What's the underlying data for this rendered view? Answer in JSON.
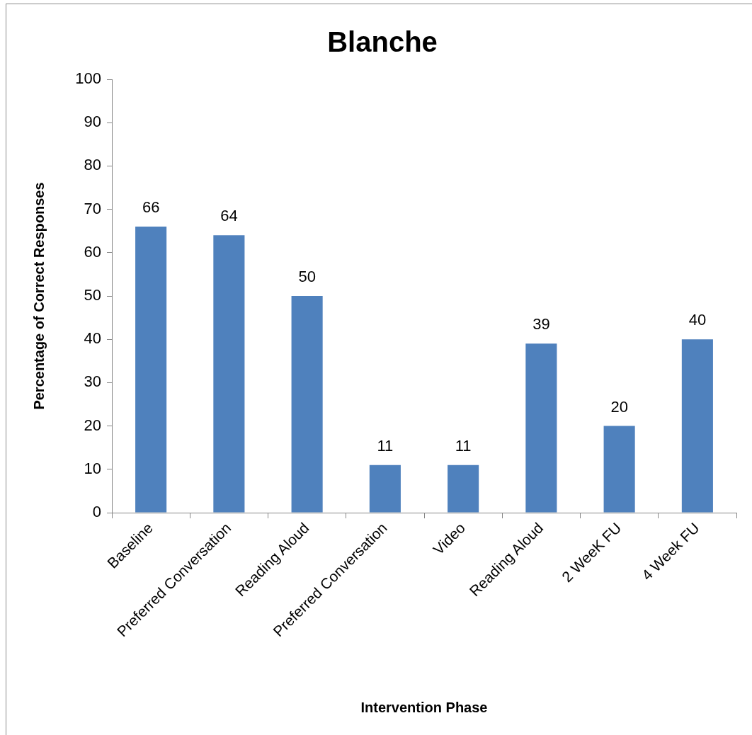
{
  "chart_data": {
    "type": "bar",
    "title": "Blanche",
    "xlabel": "Intervention Phase",
    "ylabel": "Percentage of Correct Responses",
    "categories": [
      "Baseline",
      "Preferred Conversation",
      "Reading Aloud",
      "Preferred Conversation",
      "Video",
      "Reading Aloud",
      "2 WeeK FU",
      "4 Week FU"
    ],
    "values": [
      66,
      64,
      50,
      11,
      11,
      39,
      20,
      40
    ],
    "color": "#4f81bd",
    "ylim": [
      0,
      100
    ],
    "yticks": [
      0,
      10,
      20,
      30,
      40,
      50,
      60,
      70,
      80,
      90,
      100
    ],
    "data_labels": true
  }
}
